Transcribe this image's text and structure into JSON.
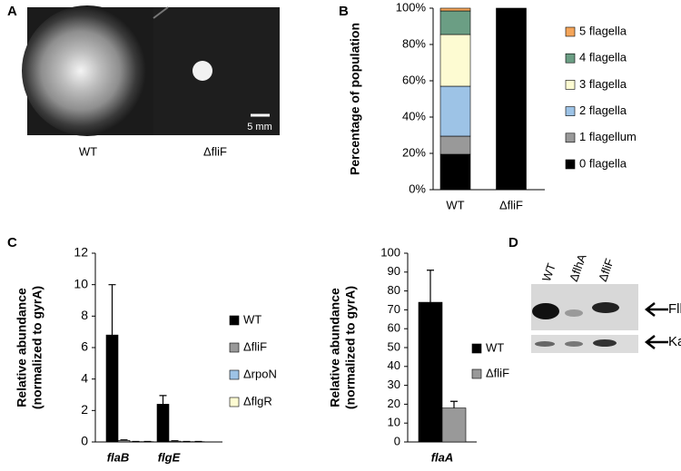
{
  "panels": {
    "A": {
      "letter": "A",
      "labels": [
        "WT",
        "ΔfliF"
      ],
      "scale": "5 mm"
    },
    "B": {
      "letter": "B"
    },
    "C": {
      "letter": "C"
    },
    "D": {
      "letter": "D",
      "lanes": [
        "WT",
        "ΔflhA",
        "ΔfliF"
      ],
      "bands": [
        "FlhA",
        "KatA"
      ]
    }
  },
  "chart_data": [
    {
      "type": "bar",
      "stacked": true,
      "ylabel": [
        "Percentage of population"
      ],
      "categories": [
        "WT",
        "ΔfliF"
      ],
      "series": [
        {
          "name": "0 flagella",
          "color": "#000000",
          "values": [
            19.5,
            100
          ]
        },
        {
          "name": "1 flagellum",
          "color": "#999999",
          "values": [
            10,
            0
          ]
        },
        {
          "name": "2 flagella",
          "color": "#9dc3e6",
          "values": [
            27.5,
            0
          ]
        },
        {
          "name": "3 flagella",
          "color": "#fdfbd2",
          "values": [
            28.5,
            0
          ]
        },
        {
          "name": "4 flagella",
          "color": "#6b9e84",
          "values": [
            13,
            0
          ]
        },
        {
          "name": "5 flagella",
          "color": "#f4a55a",
          "values": [
            1.5,
            0
          ]
        }
      ],
      "ylim": [
        0,
        100
      ],
      "yticks": [
        {
          "value": 0,
          "label": "0%"
        },
        {
          "value": 20,
          "label": "20%"
        },
        {
          "value": 40,
          "label": "40%"
        },
        {
          "value": 60,
          "label": "60%"
        },
        {
          "value": 80,
          "label": "80%"
        },
        {
          "value": 100,
          "label": "100%"
        }
      ],
      "legend": "right"
    },
    {
      "type": "bar",
      "stacked": false,
      "ylabel": [
        "Relative abundance",
        "(normalized to gyrA)"
      ],
      "categories": [
        "flaB",
        "flgE"
      ],
      "series": [
        {
          "name": "WT",
          "color": "#000000",
          "values": [
            6.8,
            2.4
          ],
          "errors": [
            3.2,
            0.55
          ]
        },
        {
          "name": "ΔfliF",
          "color": "#999999",
          "values": [
            0.1,
            0.05
          ],
          "errors": [
            0.03,
            0.02
          ]
        },
        {
          "name": "ΔrpoN",
          "color": "#9dc3e6",
          "values": [
            0.02,
            0.02
          ],
          "errors": [
            0.01,
            0.01
          ]
        },
        {
          "name": "ΔflgR",
          "color": "#fdfbd2",
          "values": [
            0.02,
            0.02
          ],
          "errors": [
            0.01,
            0.01
          ]
        }
      ],
      "ylim": [
        0,
        12
      ],
      "yticks": [
        0,
        2,
        4,
        6,
        8,
        10,
        12
      ],
      "legend": "right"
    },
    {
      "type": "bar",
      "stacked": false,
      "ylabel": [
        "Relative abundance",
        "(normalized to gyrA)"
      ],
      "categories": [
        "flaA"
      ],
      "series": [
        {
          "name": "WT",
          "color": "#000000",
          "values": [
            74
          ],
          "errors": [
            17
          ]
        },
        {
          "name": "ΔfliF",
          "color": "#999999",
          "values": [
            18
          ],
          "errors": [
            3.5
          ]
        }
      ],
      "ylim": [
        0,
        100
      ],
      "yticks": [
        0,
        10,
        20,
        30,
        40,
        50,
        60,
        70,
        80,
        90,
        100
      ],
      "legend": "right"
    }
  ]
}
